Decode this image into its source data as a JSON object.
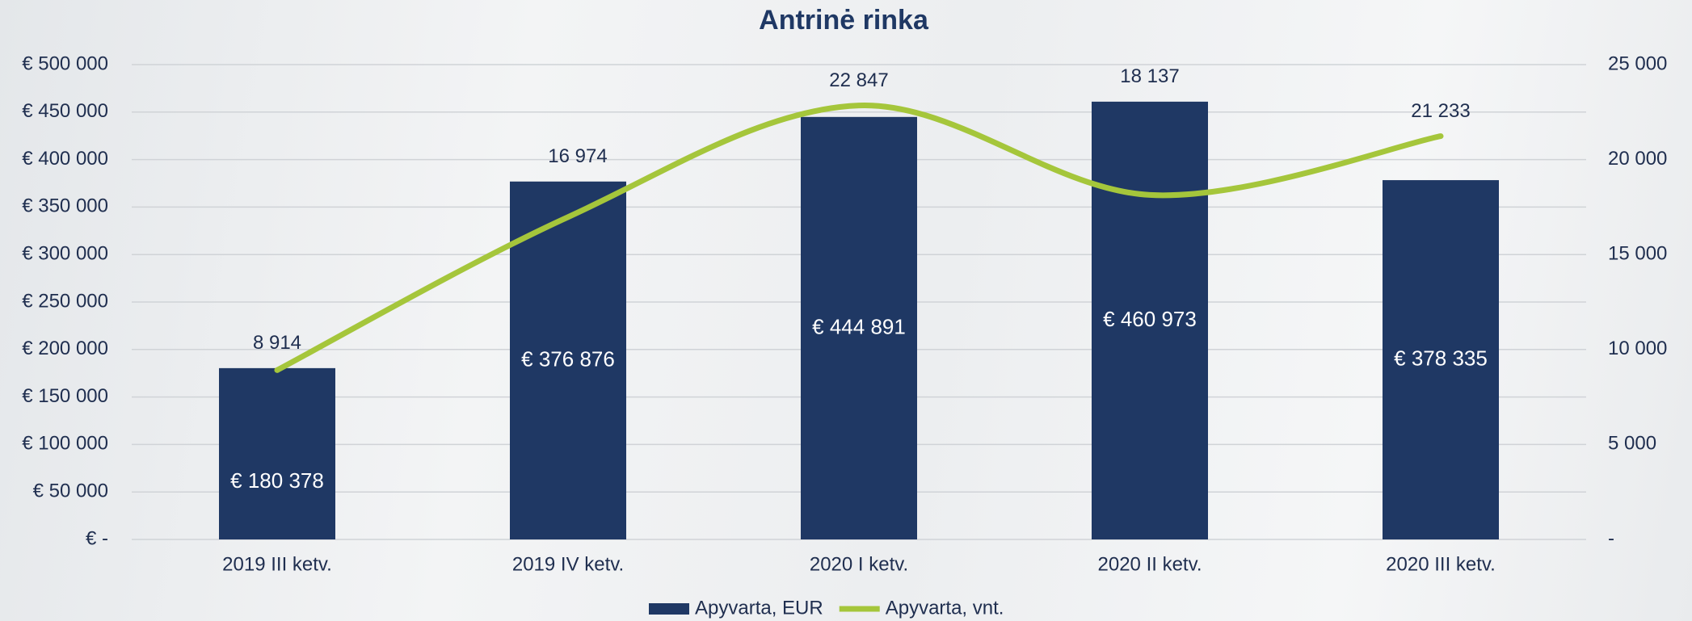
{
  "chart_data": {
    "type": "bar",
    "title": "Antrinė rinka",
    "categories": [
      "2019 III ketv.",
      "2019 IV ketv.",
      "2020 I ketv.",
      "2020 II ketv.",
      "2020 III ketv."
    ],
    "series": [
      {
        "name": "Apyvarta, EUR",
        "type": "bar",
        "color": "#1f3864",
        "values": [
          180378,
          376876,
          444891,
          460973,
          378335
        ],
        "value_labels": [
          "€ 180 378",
          "€ 376 876",
          "€ 444 891",
          "€ 460 973",
          "€ 378 335"
        ]
      },
      {
        "name": "Apyvarta, vnt.",
        "type": "line",
        "axis": "y2",
        "color": "#a5c63b",
        "values": [
          8914,
          16974,
          22847,
          18137,
          21233
        ],
        "value_labels": [
          "8 914",
          "16 974",
          "22 847",
          "18 137",
          "21 233"
        ]
      }
    ],
    "ylim": [
      0,
      500000
    ],
    "yticks": [
      {
        "value": 0,
        "label": "€ -"
      },
      {
        "value": 50000,
        "label": "€ 50 000"
      },
      {
        "value": 100000,
        "label": "€ 100 000"
      },
      {
        "value": 150000,
        "label": "€ 150 000"
      },
      {
        "value": 200000,
        "label": "€ 200 000"
      },
      {
        "value": 250000,
        "label": "€ 250 000"
      },
      {
        "value": 300000,
        "label": "€ 300 000"
      },
      {
        "value": 350000,
        "label": "€ 350 000"
      },
      {
        "value": 400000,
        "label": "€ 400 000"
      },
      {
        "value": 450000,
        "label": "€ 450 000"
      },
      {
        "value": 500000,
        "label": "€ 500 000"
      }
    ],
    "y2lim": [
      0,
      25000
    ],
    "y2ticks": [
      {
        "value": 0,
        "label": "-"
      },
      {
        "value": 5000,
        "label": "5 000"
      },
      {
        "value": 10000,
        "label": "10 000"
      },
      {
        "value": 15000,
        "label": "15 000"
      },
      {
        "value": 20000,
        "label": "20 000"
      },
      {
        "value": 25000,
        "label": "25 000"
      }
    ],
    "grid": true
  }
}
